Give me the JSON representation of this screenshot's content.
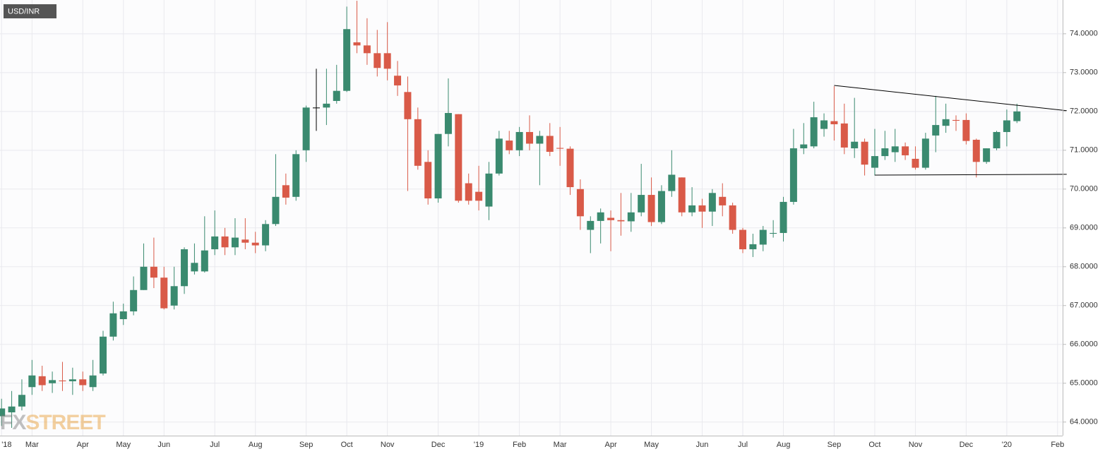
{
  "chart_data": {
    "type": "candlestick",
    "title": "USD/INR",
    "watermark": [
      "FX",
      "STREET"
    ],
    "categories": [
      "'18",
      null,
      null,
      "Mar",
      null,
      null,
      null,
      null,
      "Apr",
      null,
      null,
      null,
      "May",
      null,
      null,
      null,
      "Jun",
      null,
      null,
      null,
      null,
      "Jul",
      null,
      null,
      null,
      "Aug",
      null,
      null,
      null,
      null,
      "Sep",
      null,
      null,
      null,
      "Oct",
      null,
      null,
      null,
      "Nov",
      null,
      null,
      null,
      null,
      "Dec",
      null,
      null,
      null,
      "'19",
      null,
      null,
      null,
      "Feb",
      null,
      null,
      null,
      "Mar",
      null,
      null,
      null,
      null,
      "Apr",
      null,
      null,
      null,
      "May",
      null,
      null,
      null,
      null,
      "Jun",
      null,
      null,
      null,
      "Jul",
      null,
      null,
      null,
      "Aug",
      null,
      null,
      null,
      null,
      "Sep",
      null,
      null,
      null,
      "Oct",
      null,
      null,
      null,
      "Nov",
      null,
      null,
      null,
      null,
      "Dec",
      null,
      null,
      null,
      "'20",
      null,
      null,
      null,
      null,
      "Feb"
    ],
    "open": [
      64.15,
      64.25,
      64.4,
      64.9,
      65.18,
      65.0,
      65.07,
      65.05,
      65.1,
      64.9,
      65.25,
      66.2,
      66.65,
      66.85,
      67.4,
      68.0,
      67.72,
      67.0,
      67.5,
      67.88,
      67.88,
      68.45,
      68.78,
      68.5,
      68.7,
      68.62,
      68.55,
      69.1,
      70.1,
      69.8,
      71.0,
      72.1,
      72.1,
      72.27,
      72.53,
      73.78,
      73.7,
      73.5,
      73.5,
      72.92,
      72.5,
      71.8,
      70.7,
      69.76,
      71.42,
      71.93,
      70.15,
      69.93,
      69.55,
      70.4,
      71.25,
      71.0,
      71.47,
      71.17,
      71.37,
      71.06,
      71.04,
      70.0,
      68.95,
      69.18,
      69.26,
      69.2,
      69.17,
      69.4,
      69.85,
      69.15,
      69.95,
      70.3,
      69.4,
      69.58,
      69.42,
      69.8,
      69.58,
      68.95,
      68.45,
      68.57,
      68.85,
      68.87,
      69.67,
      71.05,
      71.1,
      71.55,
      71.75,
      71.69,
      71.05,
      71.22,
      70.55,
      70.85,
      70.95,
      71.1,
      70.78,
      70.55,
      71.38,
      71.63,
      71.78,
      71.78,
      71.27,
      70.7,
      71.05,
      71.47,
      71.75,
      null,
      null,
      null,
      null
    ],
    "high": [
      64.6,
      64.8,
      65.1,
      65.6,
      65.45,
      65.3,
      65.55,
      65.4,
      65.3,
      65.6,
      66.35,
      67.1,
      67.05,
      67.75,
      68.6,
      68.75,
      68.0,
      68.0,
      68.5,
      68.6,
      69.3,
      69.45,
      69.0,
      69.25,
      69.25,
      68.9,
      69.2,
      70.9,
      70.4,
      71.0,
      72.15,
      73.1,
      73.1,
      73.2,
      74.7,
      74.85,
      74.4,
      74.1,
      74.3,
      73.3,
      72.9,
      72.1,
      71.0,
      71.42,
      72.85,
      71.93,
      70.4,
      70.6,
      70.7,
      71.5,
      71.5,
      71.6,
      71.9,
      71.5,
      71.7,
      71.6,
      71.1,
      70.25,
      69.3,
      69.5,
      69.45,
      69.9,
      69.9,
      70.65,
      70.3,
      70.1,
      71.0,
      70.3,
      70.05,
      69.75,
      70.0,
      70.15,
      69.65,
      69.0,
      68.85,
      69.05,
      69.2,
      69.8,
      71.55,
      71.7,
      72.25,
      71.95,
      72.65,
      72.2,
      72.35,
      71.3,
      71.55,
      71.5,
      71.55,
      71.2,
      71.1,
      71.45,
      72.4,
      72.2,
      71.9,
      71.95,
      71.3,
      71.05,
      71.5,
      72.05,
      72.2,
      null,
      null,
      null,
      null
    ],
    "low": [
      63.9,
      63.85,
      64.3,
      64.7,
      64.8,
      64.75,
      64.8,
      64.7,
      64.8,
      64.8,
      65.2,
      66.1,
      66.5,
      66.75,
      67.4,
      67.45,
      66.9,
      66.9,
      67.3,
      67.8,
      67.85,
      68.3,
      68.3,
      68.3,
      68.45,
      68.35,
      68.4,
      69.05,
      69.6,
      69.7,
      70.7,
      71.5,
      71.65,
      72.2,
      72.5,
      73.5,
      73.2,
      72.9,
      72.8,
      72.4,
      69.95,
      70.5,
      69.6,
      69.65,
      71.1,
      69.65,
      69.6,
      69.45,
      69.2,
      70.35,
      70.9,
      70.85,
      71.0,
      70.1,
      70.85,
      70.6,
      69.85,
      68.95,
      68.35,
      68.6,
      68.4,
      68.8,
      68.9,
      69.3,
      69.05,
      69.1,
      69.8,
      69.3,
      69.3,
      69.0,
      69.05,
      69.3,
      68.85,
      68.35,
      68.25,
      68.4,
      68.75,
      68.65,
      69.6,
      70.9,
      71.05,
      71.35,
      71.25,
      70.9,
      70.8,
      70.35,
      70.35,
      70.75,
      70.7,
      70.75,
      70.5,
      70.5,
      70.95,
      71.45,
      71.5,
      71.15,
      70.3,
      70.65,
      71.0,
      71.1,
      71.7,
      null,
      null,
      null,
      null
    ],
    "close": [
      64.35,
      64.4,
      64.7,
      65.2,
      64.95,
      65.08,
      65.05,
      65.1,
      64.95,
      65.2,
      66.2,
      66.8,
      66.85,
      67.4,
      68.0,
      67.72,
      66.93,
      67.5,
      68.45,
      68.1,
      68.42,
      68.78,
      68.5,
      68.75,
      68.62,
      68.55,
      69.1,
      69.8,
      69.78,
      70.9,
      72.1,
      72.1,
      72.2,
      72.53,
      74.12,
      73.7,
      73.5,
      73.12,
      73.1,
      72.67,
      71.8,
      70.6,
      69.76,
      71.42,
      71.96,
      69.7,
      69.7,
      69.7,
      70.4,
      71.3,
      71.0,
      71.47,
      71.17,
      71.37,
      70.96,
      71.04,
      70.05,
      69.3,
      69.18,
      69.4,
      69.2,
      69.17,
      69.4,
      69.85,
      69.15,
      69.95,
      70.37,
      69.4,
      69.58,
      69.42,
      69.9,
      69.58,
      68.95,
      68.45,
      68.58,
      68.95,
      68.87,
      69.67,
      71.05,
      71.15,
      71.85,
      71.77,
      71.67,
      71.07,
      71.22,
      70.63,
      70.85,
      71.05,
      71.1,
      70.87,
      70.55,
      71.3,
      71.65,
      71.8,
      71.76,
      71.24,
      70.7,
      71.05,
      71.47,
      71.77,
      72.0,
      null,
      null,
      null,
      null
    ],
    "up_color": "#3a8a6f",
    "down_color": "#d95a48",
    "flat_color": "#000000",
    "trendlines": [
      {
        "x": [
          82,
          104.9
        ],
        "y": [
          72.67,
          72.02
        ]
      },
      {
        "x": [
          86,
          104.9
        ],
        "y": [
          70.36,
          70.38
        ]
      }
    ],
    "ylim": [
      63.65,
      74.87
    ],
    "yticks": [
      {
        "value": 64,
        "label": "64.0000"
      },
      {
        "value": 65,
        "label": "65.0000"
      },
      {
        "value": 66,
        "label": "66.0000"
      },
      {
        "value": 67,
        "label": "67.0000"
      },
      {
        "value": 68,
        "label": "68.0000"
      },
      {
        "value": 69,
        "label": "69.0000"
      },
      {
        "value": 70,
        "label": "70.0000"
      },
      {
        "value": 71,
        "label": "71.0000"
      },
      {
        "value": 72,
        "label": "72.0000"
      },
      {
        "value": 73,
        "label": "73.0000"
      },
      {
        "value": 74,
        "label": "74.0000"
      }
    ],
    "grid": true
  }
}
